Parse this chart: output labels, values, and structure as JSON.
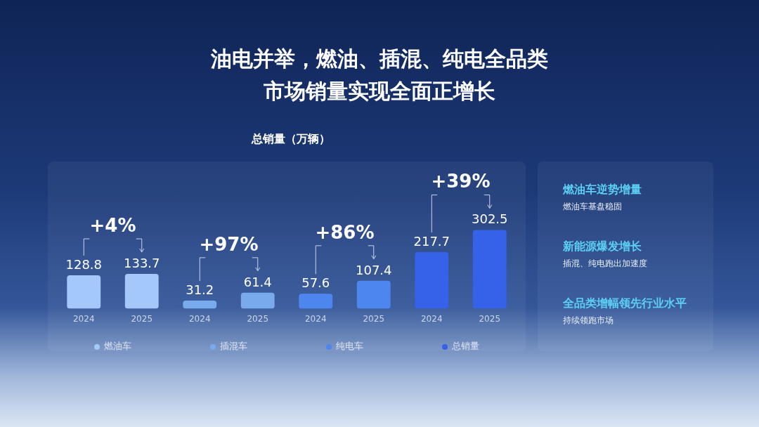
{
  "chart_data": [
    {
      "type": "bar",
      "title": "油电并举，燃油、插混、纯电全品类",
      "subtitle": "市场销量实现全面正增长",
      "ylabel": "总销量（万辆）",
      "categories": [
        "2024",
        "2025",
        "2024",
        "2025",
        "2024",
        "2025",
        "2024",
        "2025"
      ],
      "series": [
        {
          "name": "燃油车",
          "color": "#a4c8fa",
          "values": [
            128.8,
            133.7,
            null,
            null,
            null,
            null,
            null,
            null
          ]
        },
        {
          "name": "插混车",
          "color": "#78aaec",
          "values": [
            null,
            null,
            31.2,
            61.4,
            null,
            null,
            null,
            null
          ]
        },
        {
          "name": "纯电车",
          "color": "#4d86ee",
          "values": [
            null,
            null,
            null,
            null,
            57.6,
            107.4,
            null,
            null
          ]
        },
        {
          "name": "总销量",
          "color": "#3562e8",
          "values": [
            null,
            null,
            null,
            null,
            null,
            null,
            217.7,
            302.5
          ]
        }
      ],
      "annotations": [
        "+4%",
        "+97%",
        "+86%",
        "+39%"
      ],
      "data_labels": true,
      "legend": "bottom",
      "grid": false
    },
    {
      "type": "other",
      "annotations": [
        "燃油车逆势增量",
        "燃油车基盘稳固",
        "新能源爆发增长",
        "插混、纯电跑出加速度",
        "全品类增幅领先行业水平",
        "持续领跑市场"
      ]
    }
  ]
}
